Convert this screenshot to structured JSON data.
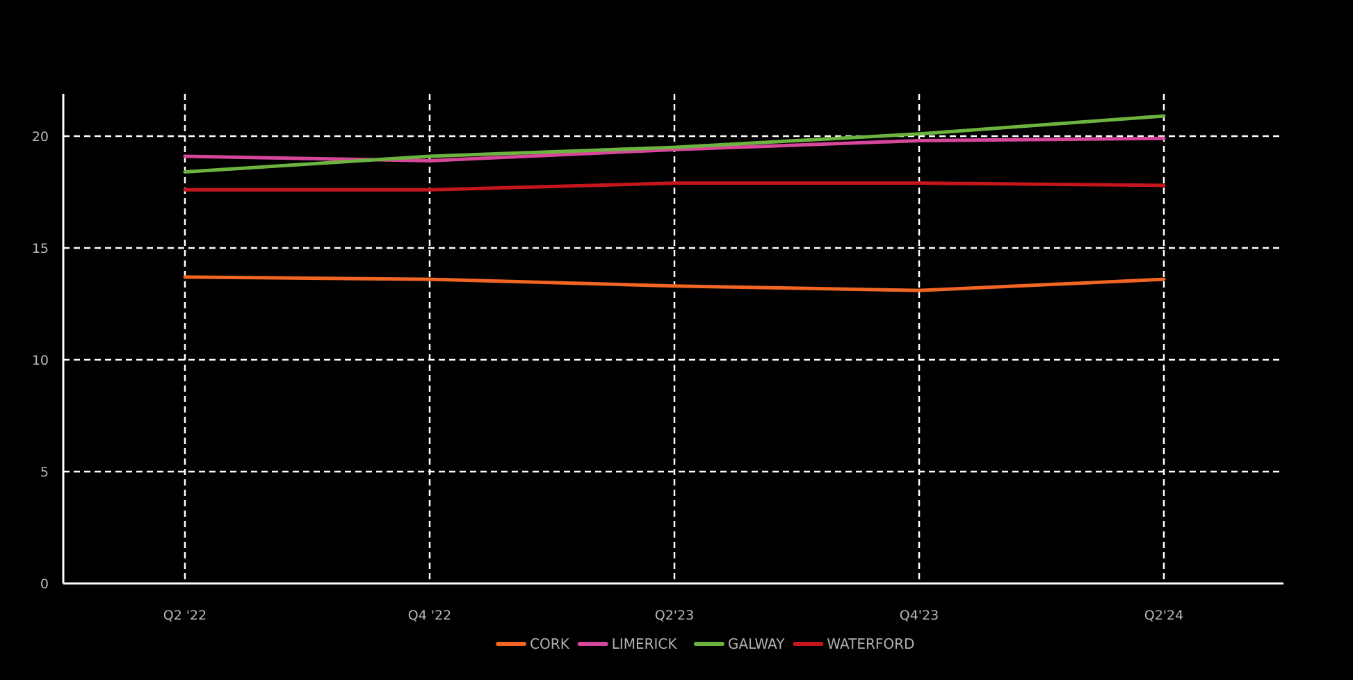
{
  "chart_data": {
    "type": "line",
    "title": "",
    "xlabel": "",
    "ylabel": "",
    "categories": [
      "Q2 '22",
      "Q4 '22",
      "Q2'23",
      "Q4'23",
      "Q2'24"
    ],
    "ylim": [
      0,
      22
    ],
    "yticks": [
      0,
      5,
      10,
      15,
      20
    ],
    "grid": true,
    "grid_style": "dashed",
    "legend_position": "bottom-center",
    "series": [
      {
        "name": "CORK",
        "color": "#f26522",
        "values": [
          13.7,
          13.6,
          13.3,
          13.1,
          13.6
        ]
      },
      {
        "name": "LIMERICK",
        "color": "#d6479b",
        "values": [
          19.1,
          18.9,
          19.4,
          19.8,
          19.9
        ]
      },
      {
        "name": "GALWAY",
        "color": "#6db33f",
        "values": [
          18.4,
          19.1,
          19.5,
          20.1,
          20.9
        ]
      },
      {
        "name": "WATERFORD",
        "color": "#c4161c",
        "values": [
          17.6,
          17.6,
          17.9,
          17.9,
          17.8
        ]
      }
    ]
  }
}
